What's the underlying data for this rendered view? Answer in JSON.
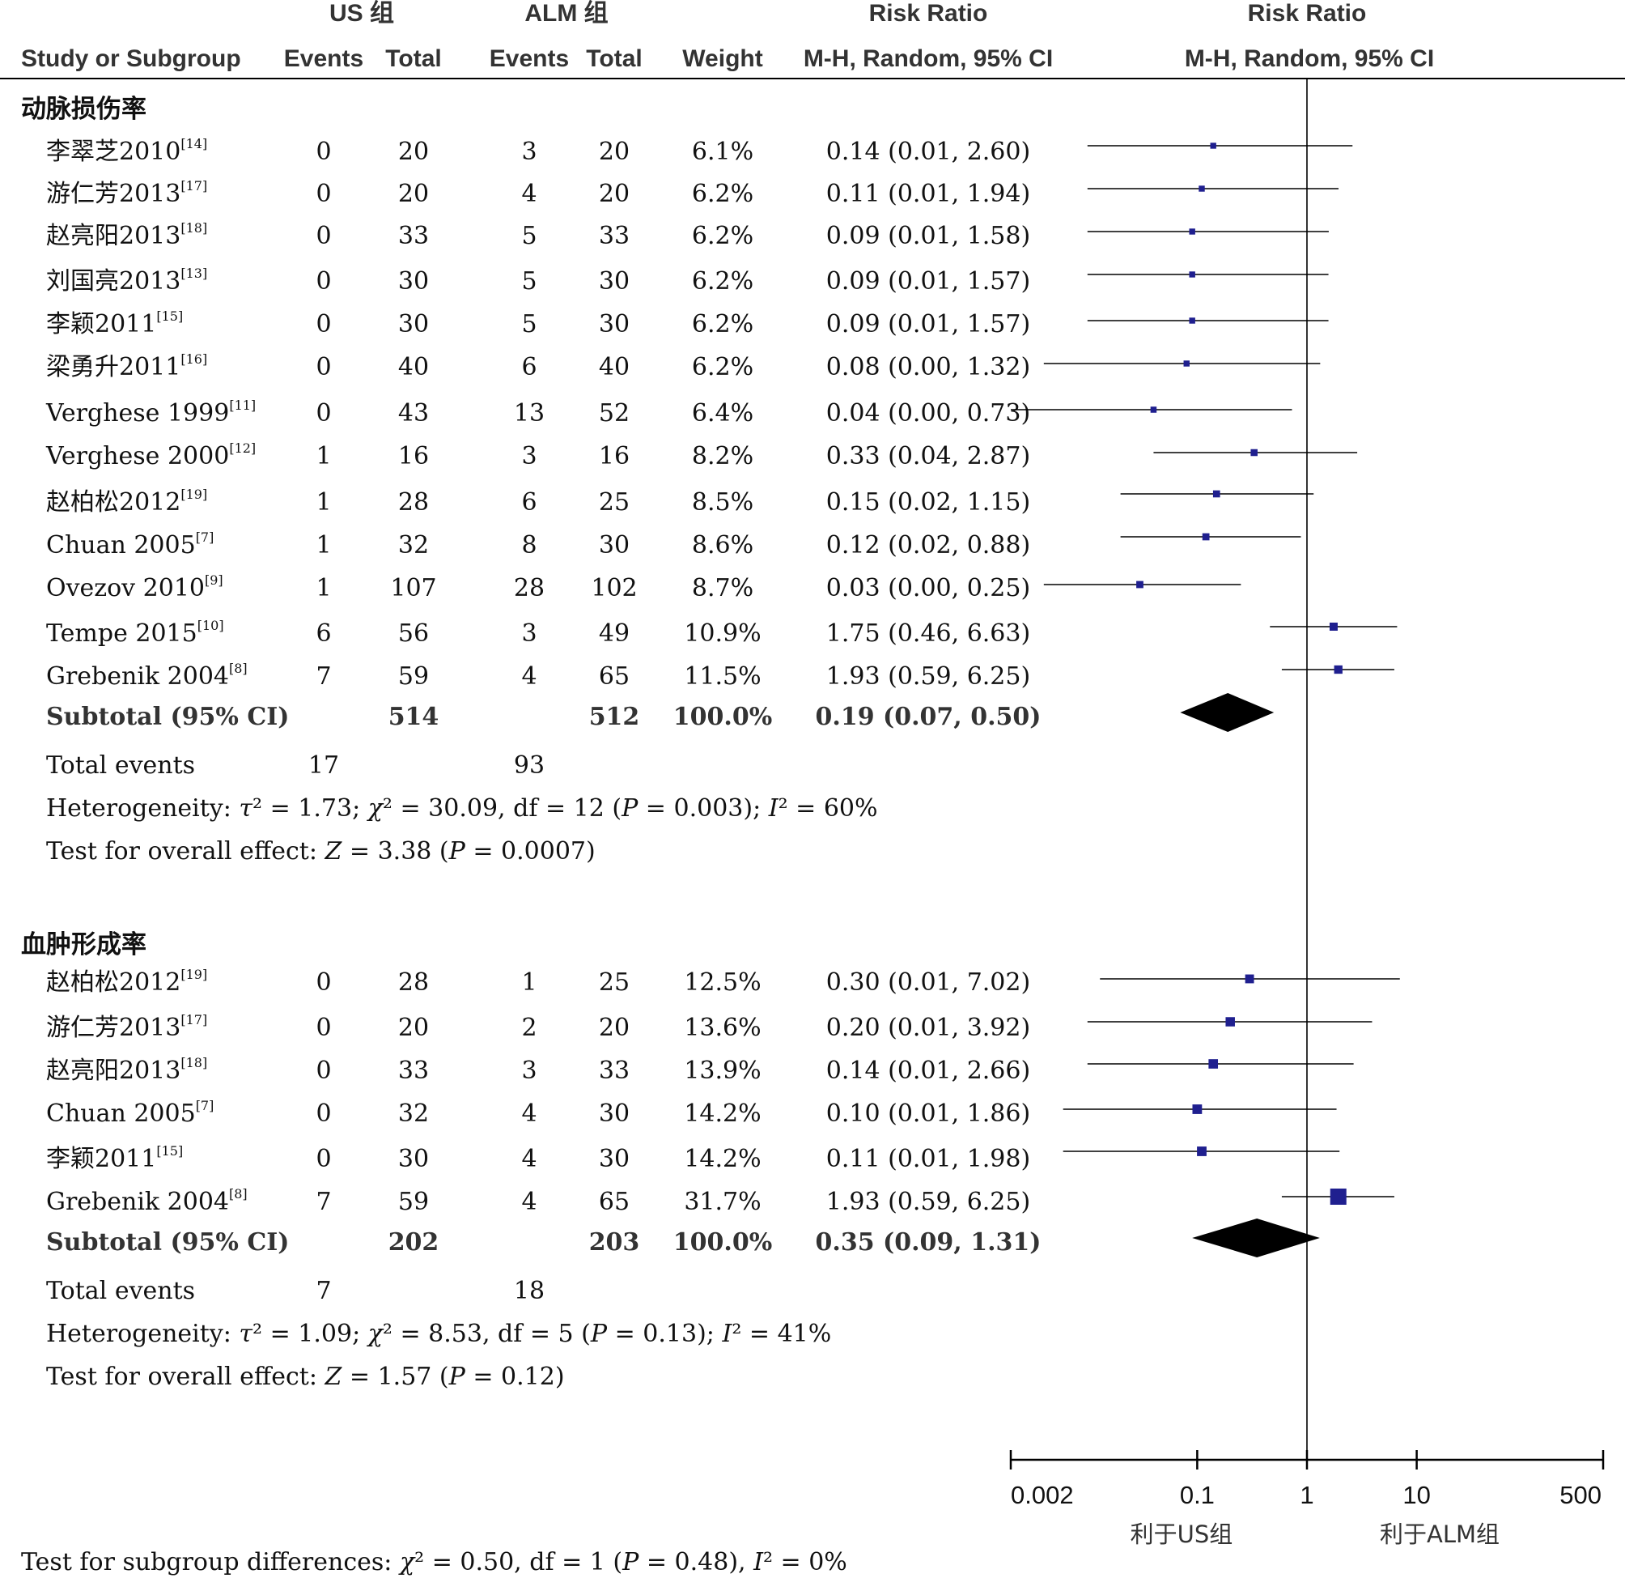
{
  "headers": {
    "us_group": "US 组",
    "alm_group": "ALM 组",
    "risk_ratio_1": "Risk Ratio",
    "risk_ratio_2": "Risk Ratio",
    "study": "Study or Subgroup",
    "events_us": "Events",
    "total_us": "Total",
    "events_alm": "Events",
    "total_alm": "Total",
    "weight": "Weight",
    "method_1": "M-H, Random, 95% CI",
    "method_2": "M-H, Random, 95% CI"
  },
  "groups": [
    {
      "title": "动脉损伤率",
      "studies": [
        {
          "name": "李翠芝2010",
          "ref": "[14]",
          "us_events": "0",
          "us_total": "20",
          "alm_events": "3",
          "alm_total": "20",
          "weight": "6.1%",
          "ci_text": "0.14 (0.01, 2.60)",
          "rr": 0.14,
          "lo": 0.01,
          "hi": 2.6
        },
        {
          "name": "游仁芳2013",
          "ref": "[17]",
          "us_events": "0",
          "us_total": "20",
          "alm_events": "4",
          "alm_total": "20",
          "weight": "6.2%",
          "ci_text": "0.11 (0.01, 1.94)",
          "rr": 0.11,
          "lo": 0.01,
          "hi": 1.94
        },
        {
          "name": "赵亮阳2013",
          "ref": "[18]",
          "us_events": "0",
          "us_total": "33",
          "alm_events": "5",
          "alm_total": "33",
          "weight": "6.2%",
          "ci_text": "0.09 (0.01, 1.58)",
          "rr": 0.09,
          "lo": 0.01,
          "hi": 1.58
        },
        {
          "name": "刘国亮2013",
          "ref": "[13]",
          "us_events": "0",
          "us_total": "30",
          "alm_events": "5",
          "alm_total": "30",
          "weight": "6.2%",
          "ci_text": "0.09 (0.01, 1.57)",
          "rr": 0.09,
          "lo": 0.01,
          "hi": 1.57
        },
        {
          "name": "李颖2011",
          "ref": "[15]",
          "us_events": "0",
          "us_total": "30",
          "alm_events": "5",
          "alm_total": "30",
          "weight": "6.2%",
          "ci_text": "0.09 (0.01, 1.57)",
          "rr": 0.09,
          "lo": 0.01,
          "hi": 1.57
        },
        {
          "name": "梁勇升2011",
          "ref": "[16]",
          "us_events": "0",
          "us_total": "40",
          "alm_events": "6",
          "alm_total": "40",
          "weight": "6.2%",
          "ci_text": "0.08 (0.00, 1.32)",
          "rr": 0.08,
          "lo": 0.004,
          "hi": 1.32
        },
        {
          "name": "Verghese 1999",
          "ref": "[11]",
          "us_events": "0",
          "us_total": "43",
          "alm_events": "13",
          "alm_total": "52",
          "weight": "6.4%",
          "ci_text": "0.04 (0.00, 0.73)",
          "rr": 0.04,
          "lo": 0.002,
          "hi": 0.73
        },
        {
          "name": "Verghese 2000",
          "ref": "[12]",
          "us_events": "1",
          "us_total": "16",
          "alm_events": "3",
          "alm_total": "16",
          "weight": "8.2%",
          "ci_text": "0.33 (0.04, 2.87)",
          "rr": 0.33,
          "lo": 0.04,
          "hi": 2.87
        },
        {
          "name": "赵柏松2012",
          "ref": "[19]",
          "us_events": "1",
          "us_total": "28",
          "alm_events": "6",
          "alm_total": "25",
          "weight": "8.5%",
          "ci_text": "0.15 (0.02, 1.15)",
          "rr": 0.15,
          "lo": 0.02,
          "hi": 1.15
        },
        {
          "name": "Chuan 2005",
          "ref": "[7]",
          "us_events": "1",
          "us_total": "32",
          "alm_events": "8",
          "alm_total": "30",
          "weight": "8.6%",
          "ci_text": "0.12 (0.02, 0.88)",
          "rr": 0.12,
          "lo": 0.02,
          "hi": 0.88
        },
        {
          "name": "Ovezov 2010",
          "ref": "[9]",
          "us_events": "1",
          "us_total": "107",
          "alm_events": "28",
          "alm_total": "102",
          "weight": "8.7%",
          "ci_text": "0.03 (0.00, 0.25)",
          "rr": 0.03,
          "lo": 0.004,
          "hi": 0.25
        },
        {
          "name": "Tempe 2015",
          "ref": "[10]",
          "us_events": "6",
          "us_total": "56",
          "alm_events": "3",
          "alm_total": "49",
          "weight": "10.9%",
          "ci_text": "1.75 (0.46, 6.63)",
          "rr": 1.75,
          "lo": 0.46,
          "hi": 6.63
        },
        {
          "name": "Grebenik 2004",
          "ref": "[8]",
          "us_events": "7",
          "us_total": "59",
          "alm_events": "4",
          "alm_total": "65",
          "weight": "11.5%",
          "ci_text": "1.93 (0.59, 6.25)",
          "rr": 1.93,
          "lo": 0.59,
          "hi": 6.25
        }
      ],
      "subtotal": {
        "label": "Subtotal (95% CI)",
        "us_total": "514",
        "alm_total": "512",
        "weight": "100.0%",
        "ci_text": "0.19 (0.07, 0.50)",
        "rr": 0.19,
        "lo": 0.07,
        "hi": 0.5
      },
      "total_events": {
        "label": "Total events",
        "us": "17",
        "alm": "93"
      },
      "heterogeneity": {
        "prefix": "Heterogeneity: ",
        "tau2": "1.73",
        "chi2": "30.09",
        "df": "12",
        "p": "0.003",
        "i2": "60%"
      },
      "overall": {
        "prefix": "Test for overall effect: ",
        "z": "3.38",
        "p": "0.0007"
      }
    },
    {
      "title": "血肿形成率",
      "studies": [
        {
          "name": "赵柏松2012",
          "ref": "[19]",
          "us_events": "0",
          "us_total": "28",
          "alm_events": "1",
          "alm_total": "25",
          "weight": "12.5%",
          "ci_text": "0.30 (0.01, 7.02)",
          "rr": 0.3,
          "lo": 0.013,
          "hi": 7.02
        },
        {
          "name": "游仁芳2013",
          "ref": "[17]",
          "us_events": "0",
          "us_total": "20",
          "alm_events": "2",
          "alm_total": "20",
          "weight": "13.6%",
          "ci_text": "0.20 (0.01, 3.92)",
          "rr": 0.2,
          "lo": 0.01,
          "hi": 3.92
        },
        {
          "name": "赵亮阳2013",
          "ref": "[18]",
          "us_events": "0",
          "us_total": "33",
          "alm_events": "3",
          "alm_total": "33",
          "weight": "13.9%",
          "ci_text": "0.14 (0.01, 2.66)",
          "rr": 0.14,
          "lo": 0.01,
          "hi": 2.66
        },
        {
          "name": "Chuan 2005",
          "ref": "[7]",
          "us_events": "0",
          "us_total": "32",
          "alm_events": "4",
          "alm_total": "30",
          "weight": "14.2%",
          "ci_text": "0.10 (0.01, 1.86)",
          "rr": 0.1,
          "lo": 0.006,
          "hi": 1.86
        },
        {
          "name": "李颖2011",
          "ref": "[15]",
          "us_events": "0",
          "us_total": "30",
          "alm_events": "4",
          "alm_total": "30",
          "weight": "14.2%",
          "ci_text": "0.11 (0.01, 1.98)",
          "rr": 0.11,
          "lo": 0.006,
          "hi": 1.98
        },
        {
          "name": "Grebenik 2004",
          "ref": "[8]",
          "us_events": "7",
          "us_total": "59",
          "alm_events": "4",
          "alm_total": "65",
          "weight": "31.7%",
          "ci_text": "1.93 (0.59, 6.25)",
          "rr": 1.93,
          "lo": 0.59,
          "hi": 6.25
        }
      ],
      "subtotal": {
        "label": "Subtotal (95% CI)",
        "us_total": "202",
        "alm_total": "203",
        "weight": "100.0%",
        "ci_text": "0.35 (0.09, 1.31)",
        "rr": 0.35,
        "lo": 0.09,
        "hi": 1.31
      },
      "total_events": {
        "label": "Total events",
        "us": "7",
        "alm": "18"
      },
      "heterogeneity": {
        "prefix": "Heterogeneity: ",
        "tau2": "1.09",
        "chi2": "8.53",
        "df": "5",
        "p": "0.13",
        "i2": "41%"
      },
      "overall": {
        "prefix": "Test for overall effect: ",
        "z": "1.57",
        "p": "0.12"
      }
    }
  ],
  "subgroup_diff": {
    "prefix": "Test for subgroup differences: ",
    "chi2": "0.50",
    "df": "1",
    "p": "0.48",
    "i2": "0%"
  },
  "axis": {
    "ticks": [
      {
        "value": 0.002,
        "label": "0.002"
      },
      {
        "value": 0.1,
        "label": "0.1"
      },
      {
        "value": 1,
        "label": "1"
      },
      {
        "value": 10,
        "label": "10"
      },
      {
        "value": 500,
        "label": "500"
      }
    ],
    "favours_left": "利于US组",
    "favours_right": "利于ALM组"
  },
  "colors": {
    "point": "#1f1f8f",
    "diamond": "#000000",
    "line": "#000000"
  },
  "chart_data": {
    "type": "forest",
    "x_scale": "log",
    "xlim": [
      0.002,
      500
    ],
    "reference_line": 1,
    "series": [
      {
        "name": "动脉损伤率",
        "studies": [
          "李翠芝2010",
          "游仁芳2013",
          "赵亮阳2013",
          "刘国亮2013",
          "李颖2011",
          "梁勇升2011",
          "Verghese 1999",
          "Verghese 2000",
          "赵柏松2012",
          "Chuan 2005",
          "Ovezov 2010",
          "Tempe 2015",
          "Grebenik 2004"
        ],
        "rr": [
          0.14,
          0.11,
          0.09,
          0.09,
          0.09,
          0.08,
          0.04,
          0.33,
          0.15,
          0.12,
          0.03,
          1.75,
          1.93
        ],
        "subtotal_rr": 0.19,
        "subtotal_ci": [
          0.07,
          0.5
        ]
      },
      {
        "name": "血肿形成率",
        "studies": [
          "赵柏松2012",
          "游仁芳2013",
          "赵亮阳2013",
          "Chuan 2005",
          "李颖2011",
          "Grebenik 2004"
        ],
        "rr": [
          0.3,
          0.2,
          0.14,
          0.1,
          0.11,
          1.93
        ],
        "subtotal_rr": 0.35,
        "subtotal_ci": [
          0.09,
          1.31
        ]
      }
    ]
  }
}
